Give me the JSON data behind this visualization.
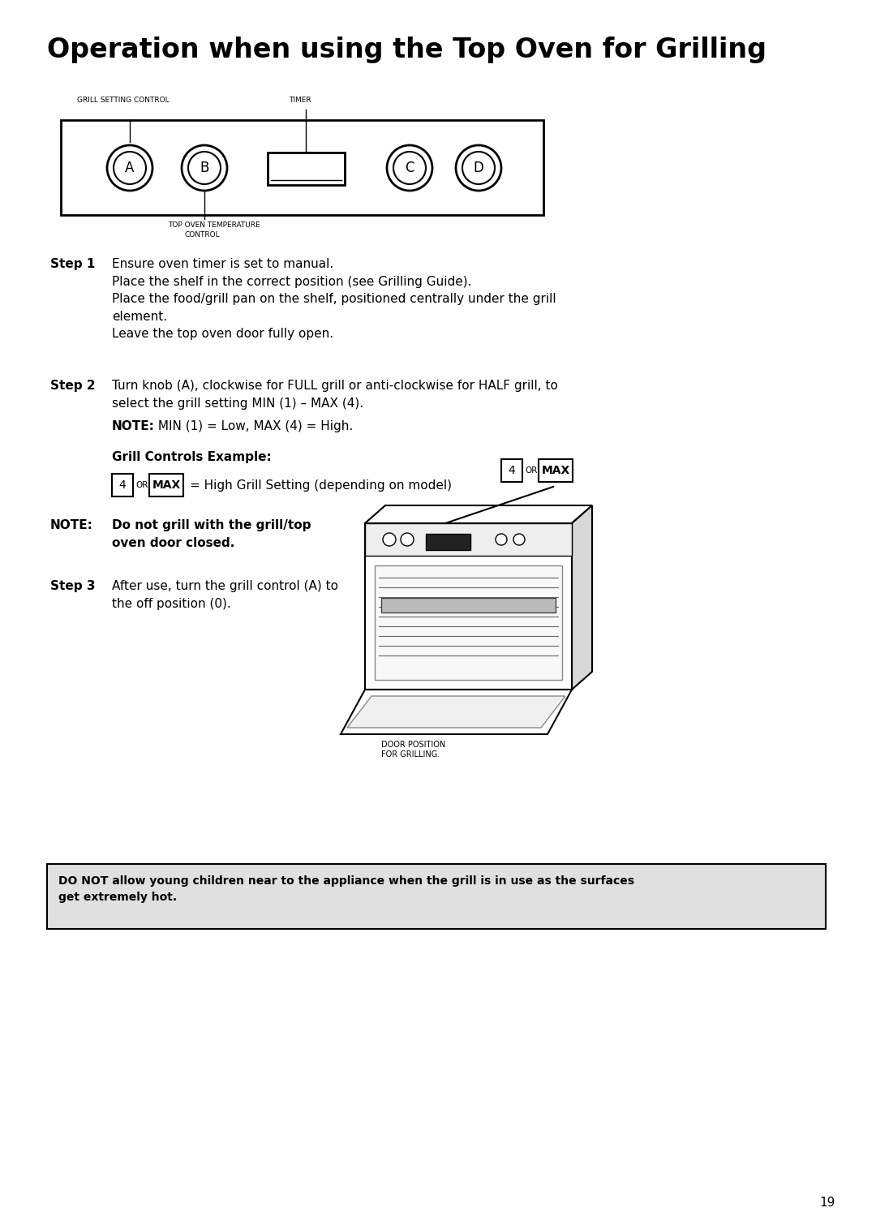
{
  "title": "Operation when using the Top Oven for Grilling",
  "bg_color": "#ffffff",
  "page_number": "19",
  "grill_setting_label": "GRILL SETTING CONTROL",
  "timer_label": "TIMER",
  "top_oven_label": "TOP OVEN TEMPERATURE\nCONTROL",
  "knob_labels": [
    "A",
    "B",
    "C",
    "D"
  ],
  "step1_label": "Step 1",
  "step1_text": "Ensure oven timer is set to manual.\nPlace the shelf in the correct position (see Grilling Guide).\nPlace the food/grill pan on the shelf, positioned centrally under the grill\nelement.\nLeave the top oven door fully open.",
  "step2_label": "Step 2",
  "step2_line1": "Turn knob (A), clockwise for FULL grill or anti-clockwise for HALF grill, to",
  "step2_line2": "select the grill setting MIN (1) – MAX (4).",
  "step2_note_bold": "NOTE:",
  "step2_note_rest": " MIN (1) = Low, MAX (4) = High.",
  "grill_example_title": "Grill Controls Example:",
  "grill_example_text": "= High Grill Setting (depending on model)",
  "note2_label": "NOTE:",
  "note2_text": "Do not grill with the grill/top\noven door closed.",
  "step3_label": "Step 3",
  "step3_text": "After use, turn the grill control (A) to\nthe off position (0).",
  "door_label": "DOOR POSITION\nFOR GRILLING.",
  "warning_text": "DO NOT allow young children near to the appliance when the grill is in use as the surfaces\nget extremely hot."
}
